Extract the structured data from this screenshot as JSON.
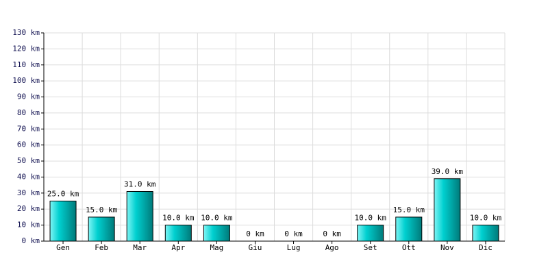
{
  "chart_data": {
    "type": "bar",
    "categories": [
      "Gen",
      "Feb",
      "Mar",
      "Apr",
      "Mag",
      "Giu",
      "Lug",
      "Ago",
      "Set",
      "Ott",
      "Nov",
      "Dic"
    ],
    "values": [
      25,
      15,
      31,
      10,
      10,
      0,
      0,
      0,
      10,
      15,
      39,
      10
    ],
    "value_labels": [
      "25.0 km",
      "15.0 km",
      "31.0 km",
      "10.0 km",
      "10.0 km",
      "0 km",
      "0 km",
      "0 km",
      "10.0 km",
      "15.0 km",
      "39.0 km",
      "10.0 km"
    ],
    "color": "#00d0d0",
    "ylim": [
      0,
      130
    ],
    "yticks": [
      {
        "value": 0,
        "label": "0 km"
      },
      {
        "value": 10,
        "label": "10 km"
      },
      {
        "value": 20,
        "label": "20 km"
      },
      {
        "value": 30,
        "label": "30 km"
      },
      {
        "value": 40,
        "label": "40 km"
      },
      {
        "value": 50,
        "label": "50 km"
      },
      {
        "value": 60,
        "label": "60 km"
      },
      {
        "value": 70,
        "label": "70 km"
      },
      {
        "value": 80,
        "label": "80 km"
      },
      {
        "value": 90,
        "label": "90 km"
      },
      {
        "value": 100,
        "label": "100 km"
      },
      {
        "value": 110,
        "label": "110 km"
      },
      {
        "value": 120,
        "label": "120 km"
      },
      {
        "value": 130,
        "label": "130 km"
      }
    ],
    "grid": true
  }
}
